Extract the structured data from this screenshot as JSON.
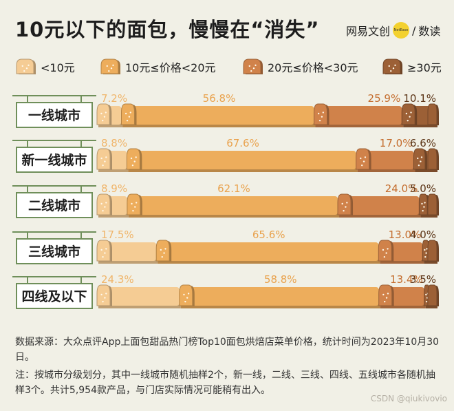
{
  "title": "10元以下的面包，慢慢在“消失”",
  "brand": {
    "name": "网易文创",
    "logo_text": "NetEase",
    "separator": "/",
    "sub": "数读"
  },
  "legend": [
    {
      "label": "<10元",
      "color": "#f5cc94"
    },
    {
      "label": "10元≤价格<20元",
      "color": "#edad5c"
    },
    {
      "label": "20元≤价格<30元",
      "color": "#d0824a"
    },
    {
      "label": "≥30元",
      "color": "#9c6036"
    }
  ],
  "chart_data": {
    "type": "bar",
    "stacked": true,
    "orientation": "horizontal",
    "unit": "%",
    "categories": [
      "一线城市",
      "新一线城市",
      "二线城市",
      "三线城市",
      "四线及以下"
    ],
    "series": [
      {
        "name": "<10元",
        "values": [
          7.2,
          8.8,
          8.9,
          17.5,
          24.3
        ]
      },
      {
        "name": "10元≤价格<20元",
        "values": [
          56.8,
          67.6,
          62.1,
          65.6,
          58.8
        ]
      },
      {
        "name": "20元≤价格<30元",
        "values": [
          25.9,
          17.0,
          24.0,
          13.0,
          13.4
        ]
      },
      {
        "name": "≥30元",
        "values": [
          10.1,
          6.6,
          5.0,
          4.0,
          3.5
        ]
      }
    ],
    "labels": [
      [
        "7.2%",
        "56.8%",
        "25.9%",
        "10.1%"
      ],
      [
        "8.8%",
        "67.6%",
        "17.0%",
        "6.6%"
      ],
      [
        "8.9%",
        "62.1%",
        "24.0%",
        "5.0%"
      ],
      [
        "17.5%",
        "65.6%",
        "13.0%",
        "4.0%"
      ],
      [
        "24.3%",
        "58.8%",
        "13.4%",
        "3.5%"
      ]
    ]
  },
  "source_note": "数据来源：大众点评App上面包甜品热门榜Top10面包烘焙店菜单价格，统计时间为2023年10月30日。",
  "note": "注：按城市分级划分，其中一线城市随机抽样2个，新一线，二线、三线、四线、五线城市各随机抽样3个。共计5,954款产品，与门店实际情况可能稍有出入。",
  "watermark": "CSDN @qiukivovio"
}
